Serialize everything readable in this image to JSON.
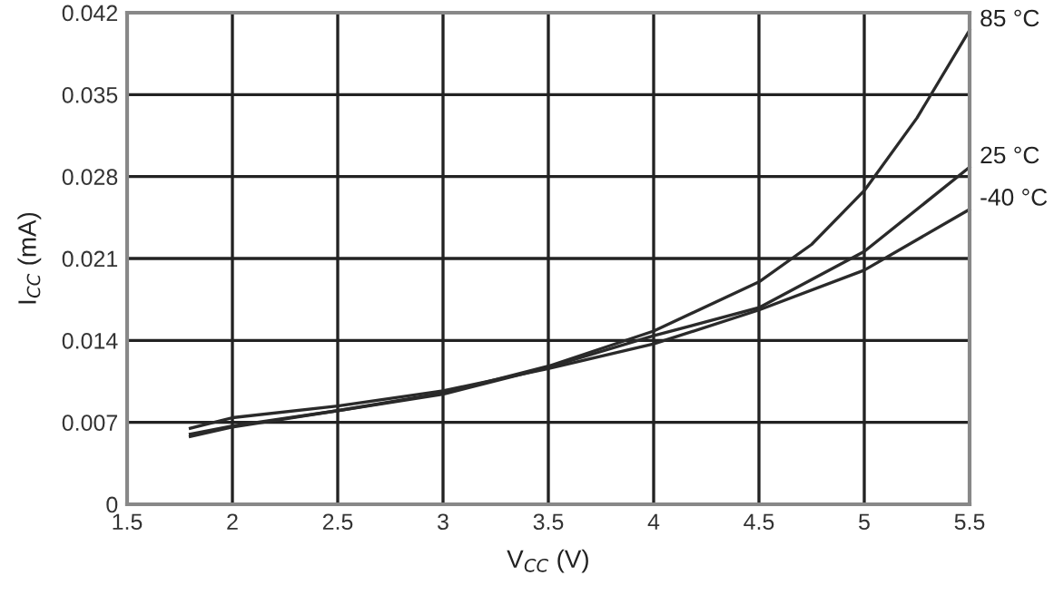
{
  "chart_data": {
    "type": "line",
    "xlabel": "V$_{CC}$ (V)",
    "ylabel": "I$_{CC}$ (mA)",
    "xlim": [
      1.5,
      5.5
    ],
    "ylim": [
      0,
      0.042
    ],
    "xticks": [
      1.5,
      2,
      2.5,
      3,
      3.5,
      4,
      4.5,
      5,
      5.5
    ],
    "yticks": [
      0,
      0.007,
      0.014,
      0.021,
      0.028,
      0.035,
      0.042
    ],
    "grid": true,
    "legend": false,
    "marker": "none",
    "line_style": "solid",
    "series": [
      {
        "name": "85 °C",
        "color": "#2a2a2a",
        "x": [
          1.8,
          2,
          2.5,
          3,
          3.5,
          4,
          4.5,
          4.75,
          5,
          5.25,
          5.5
        ],
        "values": [
          0.006,
          0.0067,
          0.008,
          0.0095,
          0.0118,
          0.0148,
          0.019,
          0.0222,
          0.0268,
          0.033,
          0.0405
        ]
      },
      {
        "name": "25 °C",
        "color": "#2a2a2a",
        "x": [
          1.8,
          2,
          2.5,
          3,
          3.5,
          4,
          4.5,
          5,
          5.5
        ],
        "values": [
          0.0058,
          0.0066,
          0.008,
          0.0094,
          0.0117,
          0.0144,
          0.0168,
          0.0216,
          0.0288
        ]
      },
      {
        "name": "-40 °C",
        "color": "#2a2a2a",
        "x": [
          1.8,
          2,
          2.5,
          3,
          3.5,
          4,
          4.5,
          5,
          5.5
        ],
        "values": [
          0.0065,
          0.0074,
          0.0084,
          0.0097,
          0.0116,
          0.0137,
          0.0166,
          0.02,
          0.0252
        ]
      }
    ]
  }
}
